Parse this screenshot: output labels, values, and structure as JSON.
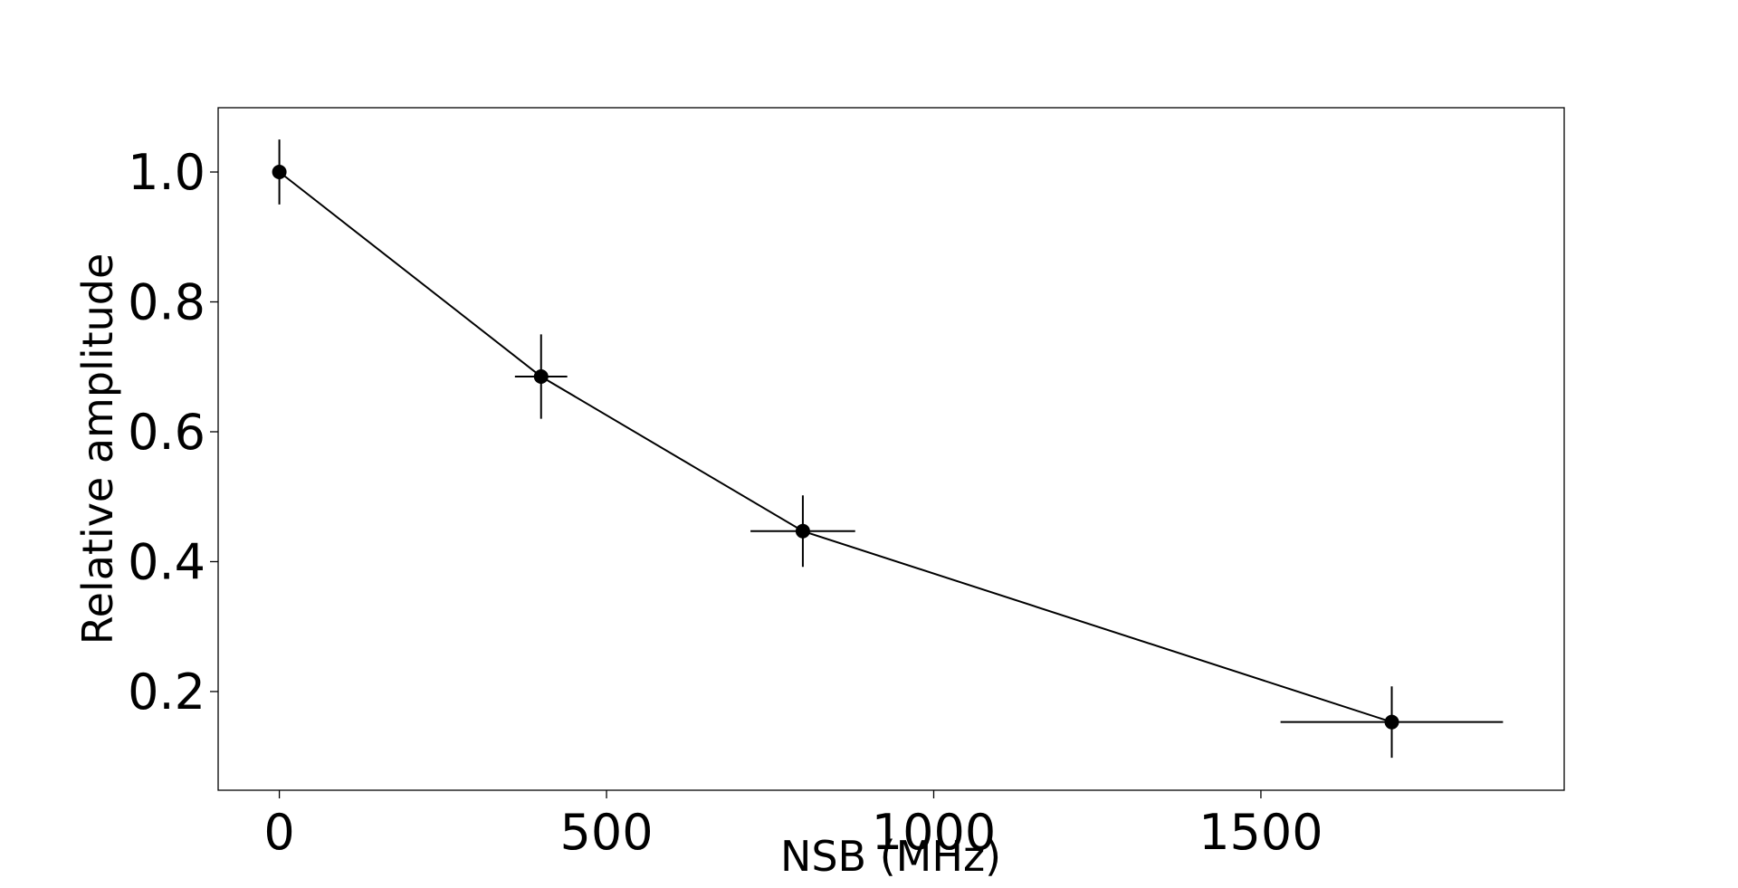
{
  "chart_data": {
    "type": "line",
    "x_label": "NSB (MHz)",
    "y_label": "Relative amplitude",
    "x": [
      0,
      400,
      800,
      1700
    ],
    "values": [
      1.0,
      0.685,
      0.447,
      0.153
    ],
    "yerr": [
      0.05,
      0.065,
      0.055,
      0.055
    ],
    "xerr": [
      0,
      40,
      80,
      170
    ],
    "color": "#000000",
    "xlim": [
      -93.5,
      1963.5
    ],
    "ylim": [
      0.048,
      1.099
    ],
    "xticks": [
      0,
      500,
      1000,
      1500
    ],
    "yticks": [
      0.2,
      0.4,
      0.6,
      {
        "value": 0.8,
        "label": "0.8"
      },
      {
        "value": 1.0,
        "label": "1.0"
      }
    ],
    "grid": false
  }
}
